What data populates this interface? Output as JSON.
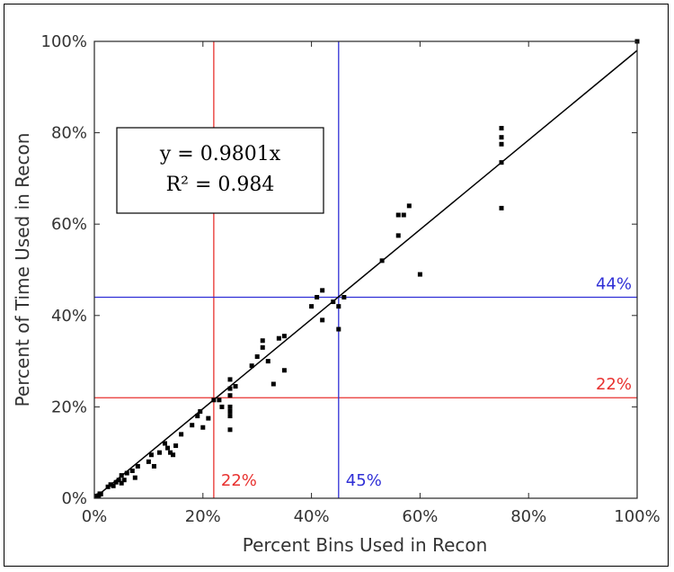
{
  "chart_data": {
    "type": "scatter",
    "title": "",
    "xlabel": "Percent Bins Used in Recon",
    "ylabel": "Percent of Time Used in Recon",
    "xlim": [
      0,
      100
    ],
    "ylim": [
      0,
      100
    ],
    "x_ticks": [
      "0%",
      "20%",
      "40%",
      "60%",
      "80%",
      "100%"
    ],
    "y_ticks": [
      "0%",
      "20%",
      "40%",
      "60%",
      "80%",
      "100%"
    ],
    "grid": false,
    "colors": {
      "points": "#000000",
      "fit": "#000000",
      "red": "#e8312f",
      "blue": "#2f2fd6"
    },
    "fit": {
      "slope": 0.9801,
      "equation_line1": "y = 0.9801x",
      "equation_line2": "R² = 0.984"
    },
    "reference_lines": [
      {
        "orientation": "vertical",
        "value": 22,
        "color": "red",
        "label": "22%"
      },
      {
        "orientation": "horizontal",
        "value": 22,
        "color": "red",
        "label": "22%"
      },
      {
        "orientation": "vertical",
        "value": 45,
        "color": "blue",
        "label": "45%"
      },
      {
        "orientation": "horizontal",
        "value": 44,
        "color": "blue",
        "label": "44%"
      }
    ],
    "points": [
      [
        0.5,
        0.5
      ],
      [
        1,
        1
      ],
      [
        0.8,
        0.6
      ],
      [
        1.2,
        0.9
      ],
      [
        2.5,
        2.5
      ],
      [
        3,
        3
      ],
      [
        3.5,
        2.7
      ],
      [
        4,
        3.5
      ],
      [
        4.5,
        4
      ],
      [
        5,
        5
      ],
      [
        5.5,
        4
      ],
      [
        5,
        3.3
      ],
      [
        6,
        5.5
      ],
      [
        7,
        6
      ],
      [
        7.5,
        4.5
      ],
      [
        8,
        7
      ],
      [
        10,
        8
      ],
      [
        10.5,
        9.5
      ],
      [
        11,
        7
      ],
      [
        12,
        10
      ],
      [
        13,
        12
      ],
      [
        13.5,
        11
      ],
      [
        14,
        10
      ],
      [
        15,
        11.5
      ],
      [
        14.5,
        9.5
      ],
      [
        16,
        14
      ],
      [
        18,
        16
      ],
      [
        19,
        18
      ],
      [
        19.5,
        19
      ],
      [
        20,
        15.5
      ],
      [
        21,
        17.5
      ],
      [
        22,
        21.5
      ],
      [
        23,
        21.5
      ],
      [
        23.5,
        20
      ],
      [
        25,
        26
      ],
      [
        25,
        24
      ],
      [
        25,
        22.5
      ],
      [
        25,
        20
      ],
      [
        25,
        19
      ],
      [
        25,
        18
      ],
      [
        25,
        15
      ],
      [
        26,
        24.5
      ],
      [
        29,
        29
      ],
      [
        30,
        31
      ],
      [
        31,
        33
      ],
      [
        31,
        34.5
      ],
      [
        32,
        30
      ],
      [
        33,
        25
      ],
      [
        34,
        35
      ],
      [
        35,
        28
      ],
      [
        35,
        35.5
      ],
      [
        40,
        42
      ],
      [
        41,
        44
      ],
      [
        42,
        45.5
      ],
      [
        42,
        39
      ],
      [
        44,
        43
      ],
      [
        45,
        42
      ],
      [
        45,
        37
      ],
      [
        46,
        44
      ],
      [
        53,
        52
      ],
      [
        56,
        57.5
      ],
      [
        56,
        62
      ],
      [
        57,
        62
      ],
      [
        58,
        64
      ],
      [
        60,
        49
      ],
      [
        75,
        81
      ],
      [
        75,
        79
      ],
      [
        75,
        77.5
      ],
      [
        75,
        73.5
      ],
      [
        75,
        63.5
      ],
      [
        100,
        100
      ]
    ]
  }
}
